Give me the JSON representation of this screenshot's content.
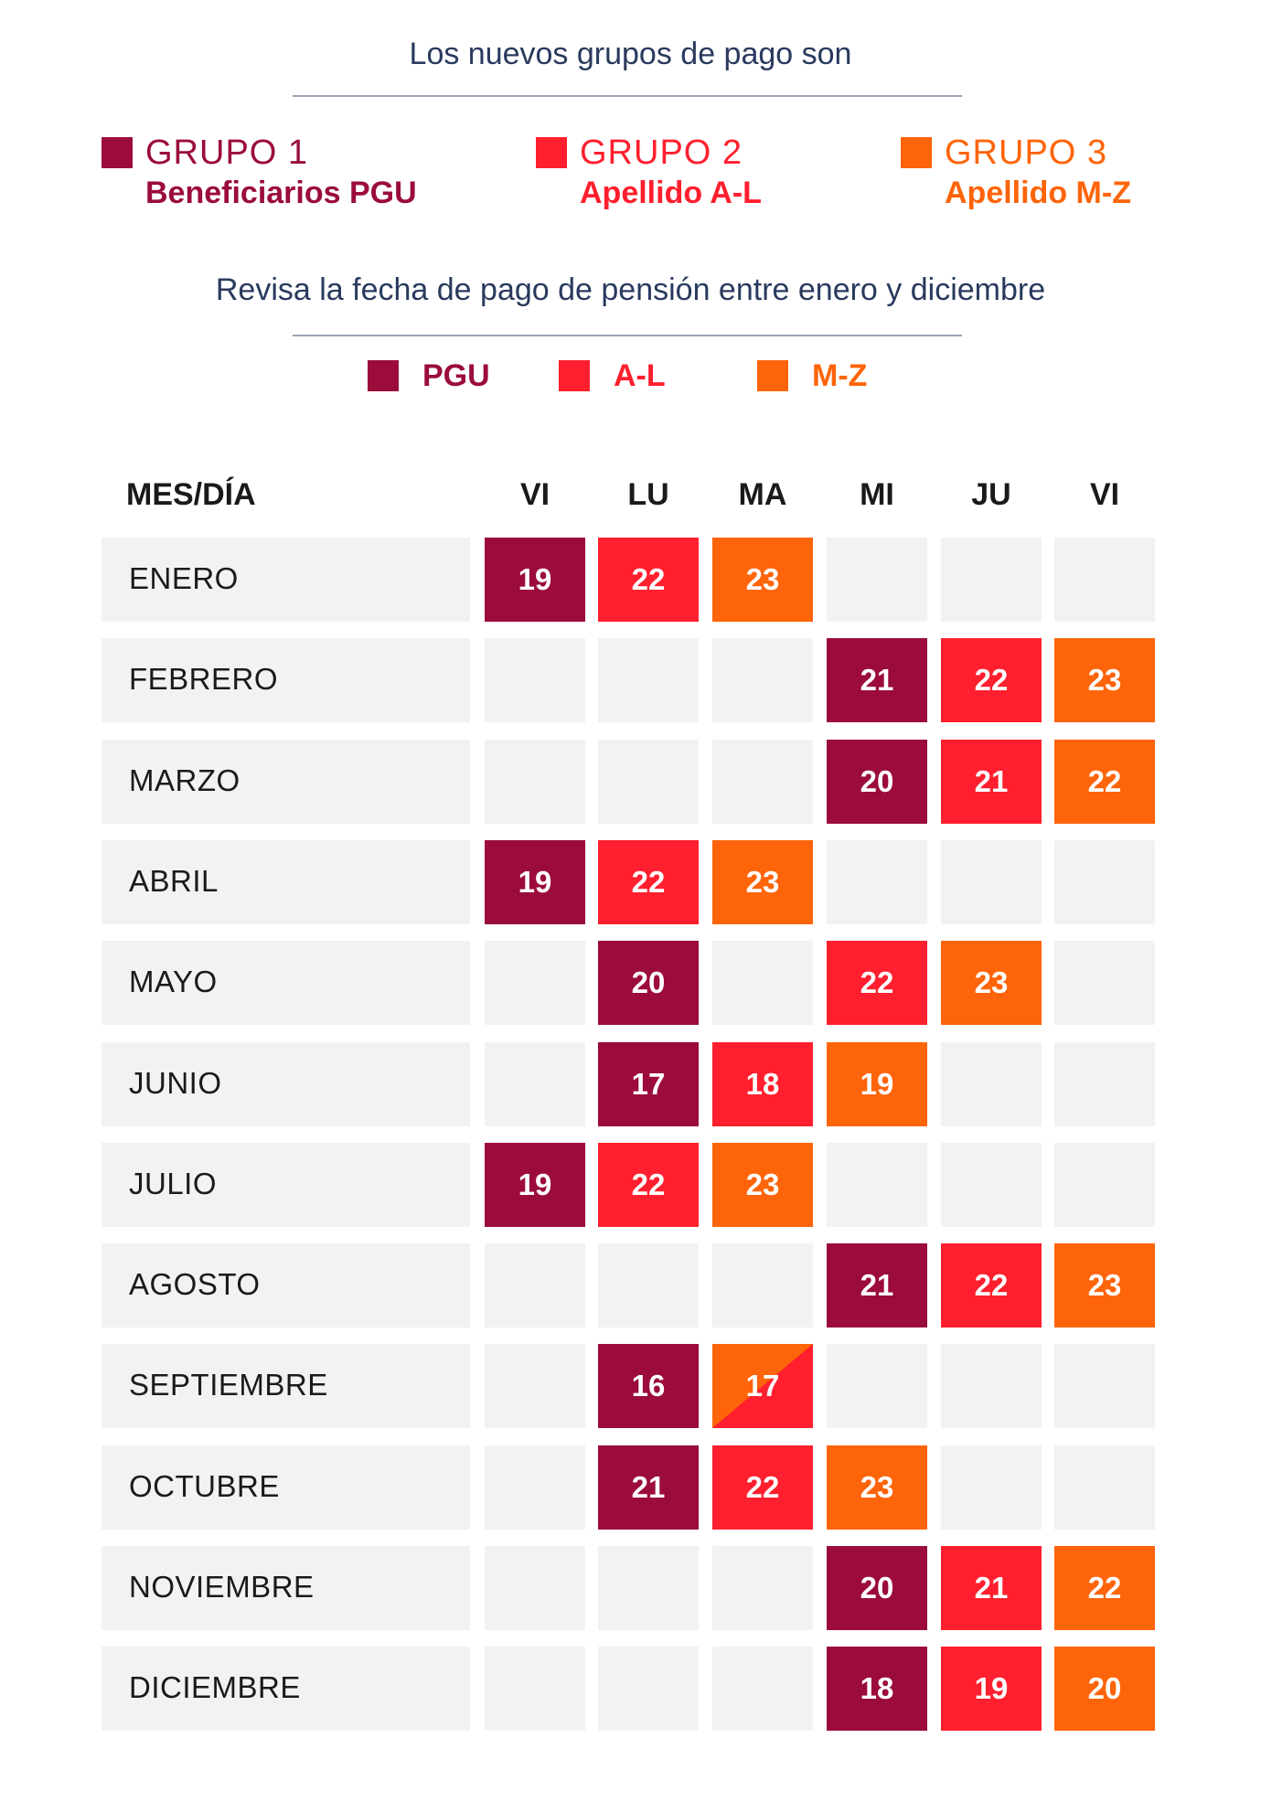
{
  "header": {
    "title": "Los nuevos grupos de pago son",
    "subtitle": "Revisa la fecha de pago de pensión entre enero y diciembre"
  },
  "colors": {
    "pgu": "#9b0c3a",
    "al": "#ff1f2e",
    "mz": "#fe6409",
    "empty": "#f2f2f2"
  },
  "groups": [
    {
      "name": "GRUPO 1",
      "desc": "Beneficiarios PGU"
    },
    {
      "name": "GRUPO 2",
      "desc": "Apellido A-L"
    },
    {
      "name": "GRUPO 3",
      "desc": "Apellido M-Z"
    }
  ],
  "legend": [
    {
      "label": "PGU"
    },
    {
      "label": "A-L"
    },
    {
      "label": "M-Z"
    }
  ],
  "table": {
    "month_header": "MES/DÍA",
    "day_headers": [
      "VI",
      "LU",
      "MA",
      "MI",
      "JU",
      "VI"
    ],
    "rows": [
      {
        "month": "ENERO",
        "cells": [
          {
            "day": "19",
            "group": "pgu"
          },
          {
            "day": "22",
            "group": "al"
          },
          {
            "day": "23",
            "group": "mz"
          },
          {
            "day": "",
            "group": ""
          },
          {
            "day": "",
            "group": ""
          },
          {
            "day": "",
            "group": ""
          }
        ]
      },
      {
        "month": "FEBRERO",
        "cells": [
          {
            "day": "",
            "group": ""
          },
          {
            "day": "",
            "group": ""
          },
          {
            "day": "",
            "group": ""
          },
          {
            "day": "21",
            "group": "pgu"
          },
          {
            "day": "22",
            "group": "al"
          },
          {
            "day": "23",
            "group": "mz"
          }
        ]
      },
      {
        "month": "MARZO",
        "cells": [
          {
            "day": "",
            "group": ""
          },
          {
            "day": "",
            "group": ""
          },
          {
            "day": "",
            "group": ""
          },
          {
            "day": "20",
            "group": "pgu"
          },
          {
            "day": "21",
            "group": "al"
          },
          {
            "day": "22",
            "group": "mz"
          }
        ]
      },
      {
        "month": "ABRIL",
        "cells": [
          {
            "day": "19",
            "group": "pgu"
          },
          {
            "day": "22",
            "group": "al"
          },
          {
            "day": "23",
            "group": "mz"
          },
          {
            "day": "",
            "group": ""
          },
          {
            "day": "",
            "group": ""
          },
          {
            "day": "",
            "group": ""
          }
        ]
      },
      {
        "month": "MAYO",
        "cells": [
          {
            "day": "",
            "group": ""
          },
          {
            "day": "20",
            "group": "pgu"
          },
          {
            "day": "",
            "group": ""
          },
          {
            "day": "22",
            "group": "al"
          },
          {
            "day": "23",
            "group": "mz"
          },
          {
            "day": "",
            "group": ""
          }
        ]
      },
      {
        "month": "JUNIO",
        "cells": [
          {
            "day": "",
            "group": ""
          },
          {
            "day": "17",
            "group": "pgu"
          },
          {
            "day": "18",
            "group": "al"
          },
          {
            "day": "19",
            "group": "mz"
          },
          {
            "day": "",
            "group": ""
          },
          {
            "day": "",
            "group": ""
          }
        ]
      },
      {
        "month": "JULIO",
        "cells": [
          {
            "day": "19",
            "group": "pgu"
          },
          {
            "day": "22",
            "group": "al"
          },
          {
            "day": "23",
            "group": "mz"
          },
          {
            "day": "",
            "group": ""
          },
          {
            "day": "",
            "group": ""
          },
          {
            "day": "",
            "group": ""
          }
        ]
      },
      {
        "month": "AGOSTO",
        "cells": [
          {
            "day": "",
            "group": ""
          },
          {
            "day": "",
            "group": ""
          },
          {
            "day": "",
            "group": ""
          },
          {
            "day": "21",
            "group": "pgu"
          },
          {
            "day": "22",
            "group": "al"
          },
          {
            "day": "23",
            "group": "mz"
          }
        ]
      },
      {
        "month": "SEPTIEMBRE",
        "cells": [
          {
            "day": "",
            "group": ""
          },
          {
            "day": "16",
            "group": "pgu"
          },
          {
            "day": "17",
            "group": "al+mz"
          },
          {
            "day": "",
            "group": ""
          },
          {
            "day": "",
            "group": ""
          },
          {
            "day": "",
            "group": ""
          }
        ]
      },
      {
        "month": "OCTUBRE",
        "cells": [
          {
            "day": "",
            "group": ""
          },
          {
            "day": "21",
            "group": "pgu"
          },
          {
            "day": "22",
            "group": "al"
          },
          {
            "day": "23",
            "group": "mz"
          },
          {
            "day": "",
            "group": ""
          },
          {
            "day": "",
            "group": ""
          }
        ]
      },
      {
        "month": "NOVIEMBRE",
        "cells": [
          {
            "day": "",
            "group": ""
          },
          {
            "day": "",
            "group": ""
          },
          {
            "day": "",
            "group": ""
          },
          {
            "day": "20",
            "group": "pgu"
          },
          {
            "day": "21",
            "group": "al"
          },
          {
            "day": "22",
            "group": "mz"
          }
        ]
      },
      {
        "month": "DICIEMBRE",
        "cells": [
          {
            "day": "",
            "group": ""
          },
          {
            "day": "",
            "group": ""
          },
          {
            "day": "",
            "group": ""
          },
          {
            "day": "18",
            "group": "pgu"
          },
          {
            "day": "19",
            "group": "al"
          },
          {
            "day": "20",
            "group": "mz"
          }
        ]
      }
    ]
  }
}
